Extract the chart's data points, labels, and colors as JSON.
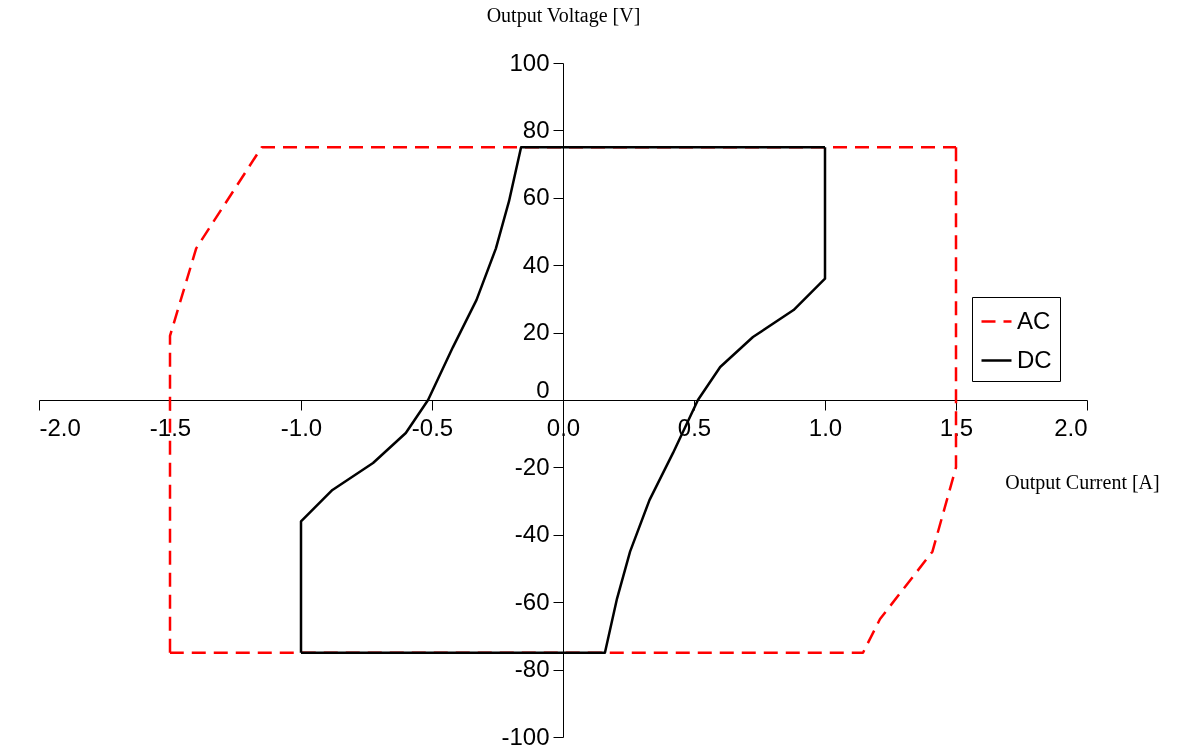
{
  "chart_data": {
    "type": "line",
    "xlabel": "Output Current [A]",
    "ylabel": "Output Voltage [V]",
    "xlim": [
      -2.0,
      2.0
    ],
    "ylim": [
      -100,
      100
    ],
    "xticks": [
      {
        "value": -2,
        "label": "-2.0"
      },
      {
        "value": -1.5,
        "label": "-1.5"
      },
      {
        "value": -1,
        "label": "-1.0"
      },
      {
        "value": -0.5,
        "label": "-0.5"
      },
      {
        "value": 0,
        "label": "0.0"
      },
      {
        "value": 0.5,
        "label": "0.5"
      },
      {
        "value": 1,
        "label": "1.0"
      },
      {
        "value": 1.5,
        "label": "1.5"
      },
      {
        "value": 2,
        "label": "2.0"
      }
    ],
    "yticks": [
      -100,
      -80,
      -60,
      -40,
      -20,
      0,
      20,
      40,
      60,
      80,
      100
    ],
    "grid": false,
    "legend": "right",
    "marker": "none",
    "series": [
      {
        "name": "AC",
        "color": "#ff0000",
        "line_style": "dashed",
        "x": [
          1.5,
          1.5,
          1.41,
          1.21,
          1.145,
          -1.5
        ],
        "values": [
          75,
          -20,
          -45,
          -65,
          -75,
          -75
        ]
      },
      {
        "color": "#ff0000",
        "line_style": "dashed",
        "x": [
          -1.5,
          -1.5,
          -1.4,
          -1.15,
          1.5
        ],
        "values": [
          -75,
          19,
          45,
          75,
          75
        ]
      },
      {
        "name": "DC",
        "color": "#000000",
        "line_style": "solid",
        "x": [
          -1.0,
          -1.0,
          -0.88,
          -0.725,
          -0.6,
          -0.515,
          -0.42,
          -0.33,
          -0.256,
          -0.206,
          -0.16,
          1.0
        ],
        "values": [
          -75,
          -36,
          -26.7,
          -18.7,
          -9.8,
          0,
          15.7,
          29.7,
          45,
          59,
          75,
          75
        ]
      },
      {
        "color": "#000000",
        "line_style": "solid",
        "x": [
          1.0,
          1.0,
          0.88,
          0.725,
          0.6,
          0.515,
          0.42,
          0.33,
          0.256,
          0.206,
          0.16,
          -1.0
        ],
        "values": [
          75,
          36,
          26.7,
          18.7,
          9.8,
          0,
          -15.7,
          -29.7,
          -45,
          -59,
          -75,
          -75
        ]
      }
    ]
  }
}
